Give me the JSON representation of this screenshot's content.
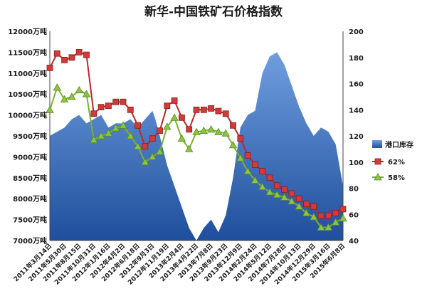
{
  "chart_data": {
    "type": "line",
    "title": "新华-中国铁矿石价格指数",
    "y_left": {
      "ticks": [
        "12000万吨",
        "11500万吨",
        "11000万吨",
        "10500万吨",
        "10000万吨",
        "9500万吨",
        "9000万吨",
        "8500万吨",
        "8000万吨",
        "7500万吨",
        "7000万吨"
      ],
      "range": [
        7000,
        12000
      ],
      "unit": "万吨"
    },
    "y_right": {
      "ticks": [
        "200",
        "180",
        "160",
        "140",
        "120",
        "100",
        "80",
        "60",
        "40"
      ],
      "range": [
        40,
        200
      ]
    },
    "x_ticks": [
      "2011年3月14日",
      "2011年5月30日",
      "2011年8月15日",
      "2011年10月31日",
      "2012年1月16日",
      "2012年4月2日",
      "2012年6月18日",
      "2012年9月3日",
      "2012年11月19日",
      "2013年2月4日",
      "2013年4月22日",
      "2013年7月8日",
      "2013年9月23日",
      "2013年12月9日",
      "2014年2月24日",
      "2014年5月12日",
      "2014年7月28日",
      "2014年10月13日",
      "2014年12月29日",
      "2015年3月16日",
      "2015年6月8日"
    ],
    "series": [
      {
        "name": "港口库存",
        "kind": "area",
        "axis": "left",
        "color": "#2f6fc9",
        "x": [
          0,
          0.5,
          1,
          1.5,
          2,
          2.5,
          3,
          3.5,
          4,
          4.5,
          5,
          5.5,
          6,
          6.5,
          7,
          7.2,
          7.5,
          8,
          8.5,
          9,
          9.5,
          10,
          10.5,
          11,
          11.5,
          12,
          12.5,
          13,
          13.5,
          14,
          14.5,
          15,
          15.5,
          16,
          16.5,
          17,
          17.5,
          18,
          18.5,
          19,
          19.5,
          20
        ],
        "values": [
          9500,
          9600,
          9700,
          9900,
          10000,
          9800,
          9900,
          10000,
          9700,
          9800,
          9800,
          9900,
          9700,
          9900,
          10100,
          9900,
          9500,
          8800,
          8300,
          7800,
          7300,
          7000,
          7300,
          7500,
          7200,
          7600,
          8500,
          9700,
          10000,
          10100,
          11000,
          11400,
          11500,
          11200,
          10700,
          10200,
          9800,
          9500,
          9700,
          9600,
          9300,
          8300
        ]
      },
      {
        "name": "62%",
        "kind": "line",
        "axis": "right",
        "color": "#c0262b",
        "x": [
          0,
          0.5,
          1,
          1.5,
          2,
          2.5,
          3,
          3.5,
          4,
          4.5,
          5,
          5.5,
          6,
          6.5,
          7,
          7.5,
          8,
          8.5,
          9,
          9.5,
          10,
          10.5,
          11,
          11.5,
          12,
          12.5,
          13,
          13.5,
          14,
          14.5,
          15,
          15.5,
          16,
          16.5,
          17,
          17.5,
          18,
          18.5,
          19,
          19.5,
          20
        ],
        "values": [
          172,
          183,
          178,
          180,
          184,
          182,
          137,
          142,
          143,
          146,
          146,
          140,
          128,
          112,
          118,
          124,
          143,
          147,
          134,
          125,
          140,
          140,
          141,
          139,
          137,
          128,
          118,
          105,
          98,
          93,
          88,
          82,
          79,
          76,
          72,
          68,
          66,
          59,
          59,
          61,
          64
        ]
      },
      {
        "name": "58%",
        "kind": "line",
        "axis": "right",
        "color": "#7cb033",
        "x": [
          0,
          0.5,
          1,
          1.5,
          2,
          2.5,
          3,
          3.5,
          4,
          4.5,
          5,
          5.5,
          6,
          6.5,
          7,
          7.5,
          8,
          8.5,
          9,
          9.5,
          10,
          10.5,
          11,
          11.5,
          12,
          12.5,
          13,
          13.5,
          14,
          14.5,
          15,
          15.5,
          16,
          16.5,
          17,
          17.5,
          18,
          18.5,
          19,
          19.5,
          20
        ],
        "values": [
          140,
          157,
          148,
          150,
          155,
          152,
          117,
          120,
          122,
          126,
          128,
          120,
          112,
          100,
          104,
          108,
          127,
          134,
          118,
          110,
          123,
          124,
          125,
          123,
          122,
          113,
          103,
          93,
          86,
          81,
          77,
          75,
          73,
          70,
          66,
          61,
          58,
          50,
          50,
          54,
          57
        ]
      }
    ],
    "legend": {
      "placement": "right"
    },
    "grid": false
  }
}
